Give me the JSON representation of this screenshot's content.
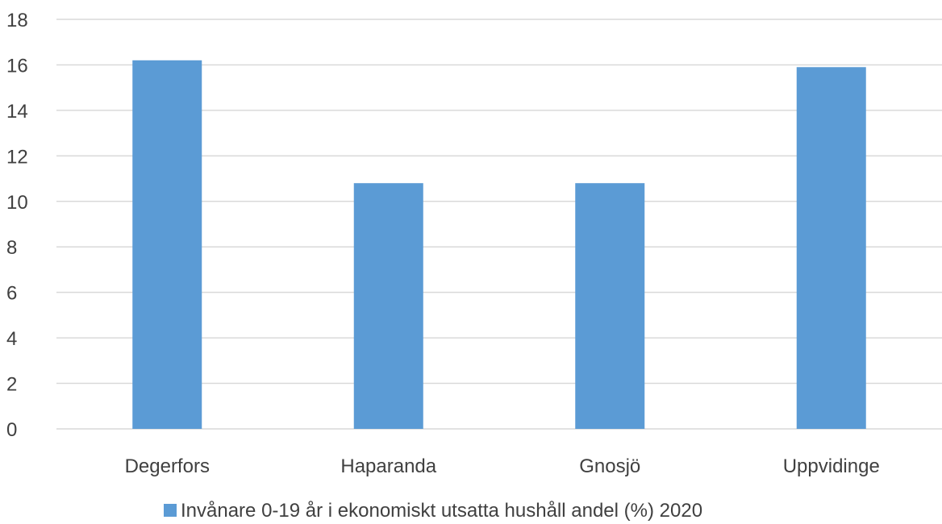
{
  "chart_data": {
    "type": "bar",
    "categories": [
      "Degerfors",
      "Haparanda",
      "Gnosjö",
      "Uppvidinge"
    ],
    "series": [
      {
        "name": "Invånare 0-19 år i ekonomiskt utsatta hushåll andel (%) 2020",
        "values": [
          16.2,
          10.8,
          10.8,
          15.9
        ],
        "color": "#5B9BD5"
      }
    ],
    "yticks": [
      "0",
      "2",
      "4",
      "6",
      "8",
      "10",
      "12",
      "14",
      "16",
      "18"
    ],
    "ylim": [
      0,
      18
    ],
    "grid": true,
    "legend": "bottom",
    "gridline_color": "#D9D9D9"
  }
}
